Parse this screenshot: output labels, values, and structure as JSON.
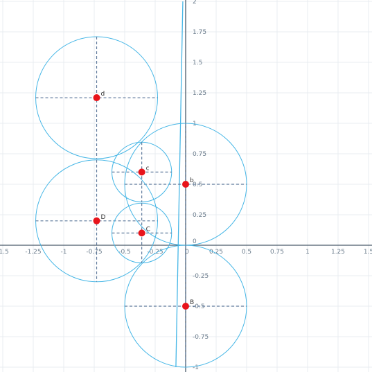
{
  "graph": {
    "x_range": [
      -1.5,
      1.5
    ],
    "y_range": [
      -1.0,
      2.0
    ],
    "grid": true,
    "x_ticks": [
      {
        "value": -1.5,
        "label": "-1.5"
      },
      {
        "value": -1.25,
        "label": "-1.25"
      },
      {
        "value": -1.0,
        "label": "-1"
      },
      {
        "value": -0.75,
        "label": "-0.75"
      },
      {
        "value": -0.5,
        "label": "-0.5"
      },
      {
        "value": -0.25,
        "label": "-0.25"
      },
      {
        "value": 0.25,
        "label": "0.25"
      },
      {
        "value": 0.5,
        "label": "0.5"
      },
      {
        "value": 0.75,
        "label": "0.75"
      },
      {
        "value": 1.0,
        "label": "1"
      },
      {
        "value": 1.25,
        "label": "1.25"
      },
      {
        "value": 1.5,
        "label": "1.5"
      }
    ],
    "y_ticks": [
      {
        "value": 2.0,
        "label": "2"
      },
      {
        "value": 1.75,
        "label": "1.75"
      },
      {
        "value": 1.5,
        "label": "1.5"
      },
      {
        "value": 1.25,
        "label": "1.25"
      },
      {
        "value": 1.0,
        "label": "1"
      },
      {
        "value": 0.75,
        "label": "0.75"
      },
      {
        "value": 0.5,
        "label": "0.5"
      },
      {
        "value": 0.25,
        "label": "0.25"
      },
      {
        "value": -0.25,
        "label": "-0.25"
      },
      {
        "value": -0.5,
        "label": "-0.5"
      },
      {
        "value": -0.75,
        "label": "-0.75"
      },
      {
        "value": -1.0,
        "label": "-1"
      }
    ],
    "origin_x_label": "0",
    "origin_y_label": "0",
    "circles": [
      {
        "name": "d",
        "label": "d",
        "cx": -0.73,
        "cy": 1.21,
        "r": 0.5
      },
      {
        "name": "b",
        "label": "b",
        "cx": 0.0,
        "cy": 0.5,
        "r": 0.5
      },
      {
        "name": "c-lower",
        "label": "c",
        "cx": -0.36,
        "cy": 0.6,
        "r": 0.245
      },
      {
        "name": "D",
        "label": "D",
        "cx": -0.73,
        "cy": 0.2,
        "r": 0.5
      },
      {
        "name": "C",
        "label": "C",
        "cx": -0.36,
        "cy": 0.1,
        "r": 0.245
      },
      {
        "name": "B",
        "label": "B",
        "cx": 0.0,
        "cy": -0.5,
        "r": 0.5
      }
    ],
    "line": {
      "x1": -0.08,
      "y1": 2.0,
      "x2": -0.08,
      "y2": -1.0
    },
    "colors": {
      "circle": "#45b6e6",
      "point": "#e8141b",
      "dash": "#5f7a9c",
      "axis": "#4a5a6a",
      "grid": "#e8ecf0"
    }
  }
}
